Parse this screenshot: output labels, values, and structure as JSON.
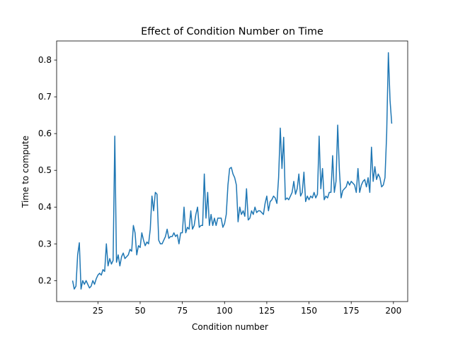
{
  "chart_data": {
    "type": "line",
    "title": "Effect of Condition Number on Time",
    "x_label": "Condition number",
    "y_label": "Time to compute",
    "color": "#1f77b4",
    "x": [
      10,
      11,
      12,
      13,
      14,
      15,
      16,
      17,
      18,
      19,
      20,
      21,
      22,
      23,
      24,
      25,
      26,
      27,
      28,
      29,
      30,
      31,
      32,
      33,
      34,
      35,
      36,
      37,
      38,
      39,
      40,
      41,
      42,
      43,
      44,
      45,
      46,
      47,
      48,
      49,
      50,
      51,
      52,
      53,
      54,
      55,
      56,
      57,
      58,
      59,
      60,
      61,
      62,
      63,
      64,
      65,
      66,
      67,
      68,
      69,
      70,
      71,
      72,
      73,
      74,
      75,
      76,
      77,
      78,
      79,
      80,
      81,
      82,
      83,
      84,
      85,
      86,
      87,
      88,
      89,
      90,
      91,
      92,
      93,
      94,
      95,
      96,
      97,
      98,
      99,
      100,
      101,
      102,
      103,
      104,
      105,
      106,
      107,
      108,
      109,
      110,
      111,
      112,
      113,
      114,
      115,
      116,
      117,
      118,
      119,
      120,
      121,
      122,
      123,
      124,
      125,
      126,
      127,
      128,
      129,
      130,
      131,
      132,
      133,
      134,
      135,
      136,
      137,
      138,
      139,
      140,
      141,
      142,
      143,
      144,
      145,
      146,
      147,
      148,
      149,
      150,
      151,
      152,
      153,
      154,
      155,
      156,
      157,
      158,
      159,
      160,
      161,
      162,
      163,
      164,
      165,
      166,
      167,
      168,
      169,
      170,
      171,
      172,
      173,
      174,
      175,
      176,
      177,
      178,
      179,
      180,
      181,
      182,
      183,
      184,
      185,
      186,
      187,
      188,
      189,
      190,
      191,
      192,
      193,
      194,
      195,
      196,
      197,
      198,
      199
    ],
    "values": [
      0.2,
      0.177,
      0.185,
      0.27,
      0.303,
      0.177,
      0.2,
      0.19,
      0.2,
      0.19,
      0.18,
      0.185,
      0.2,
      0.19,
      0.205,
      0.215,
      0.22,
      0.215,
      0.23,
      0.225,
      0.3,
      0.24,
      0.26,
      0.245,
      0.255,
      0.593,
      0.25,
      0.27,
      0.24,
      0.265,
      0.275,
      0.26,
      0.265,
      0.27,
      0.285,
      0.28,
      0.35,
      0.33,
      0.27,
      0.295,
      0.29,
      0.33,
      0.31,
      0.295,
      0.305,
      0.3,
      0.34,
      0.43,
      0.39,
      0.44,
      0.435,
      0.31,
      0.3,
      0.3,
      0.31,
      0.32,
      0.34,
      0.315,
      0.32,
      0.32,
      0.33,
      0.32,
      0.325,
      0.3,
      0.33,
      0.33,
      0.4,
      0.33,
      0.345,
      0.34,
      0.39,
      0.34,
      0.35,
      0.38,
      0.4,
      0.345,
      0.35,
      0.35,
      0.49,
      0.37,
      0.44,
      0.35,
      0.38,
      0.35,
      0.37,
      0.35,
      0.37,
      0.37,
      0.37,
      0.345,
      0.355,
      0.38,
      0.46,
      0.505,
      0.508,
      0.49,
      0.48,
      0.46,
      0.36,
      0.4,
      0.38,
      0.39,
      0.375,
      0.45,
      0.365,
      0.37,
      0.39,
      0.38,
      0.4,
      0.385,
      0.39,
      0.39,
      0.385,
      0.38,
      0.41,
      0.43,
      0.39,
      0.415,
      0.42,
      0.43,
      0.425,
      0.41,
      0.48,
      0.615,
      0.505,
      0.59,
      0.42,
      0.425,
      0.42,
      0.43,
      0.44,
      0.47,
      0.435,
      0.45,
      0.49,
      0.43,
      0.44,
      0.495,
      0.415,
      0.43,
      0.42,
      0.43,
      0.425,
      0.44,
      0.425,
      0.435,
      0.593,
      0.45,
      0.505,
      0.42,
      0.43,
      0.425,
      0.44,
      0.44,
      0.54,
      0.44,
      0.47,
      0.623,
      0.5,
      0.425,
      0.445,
      0.45,
      0.455,
      0.47,
      0.46,
      0.47,
      0.465,
      0.46,
      0.44,
      0.505,
      0.44,
      0.46,
      0.47,
      0.475,
      0.455,
      0.48,
      0.44,
      0.563,
      0.47,
      0.51,
      0.475,
      0.49,
      0.48,
      0.455,
      0.46,
      0.48,
      0.6,
      0.82,
      0.69,
      0.627
    ],
    "xlim": [
      0.55,
      208.45
    ],
    "xticks": [
      25,
      50,
      75,
      100,
      125,
      150,
      175,
      200
    ],
    "ylim": [
      0.143,
      0.852
    ],
    "yticks": [
      0.2,
      0.3,
      0.4,
      0.5,
      0.6,
      0.7,
      0.8
    ]
  }
}
